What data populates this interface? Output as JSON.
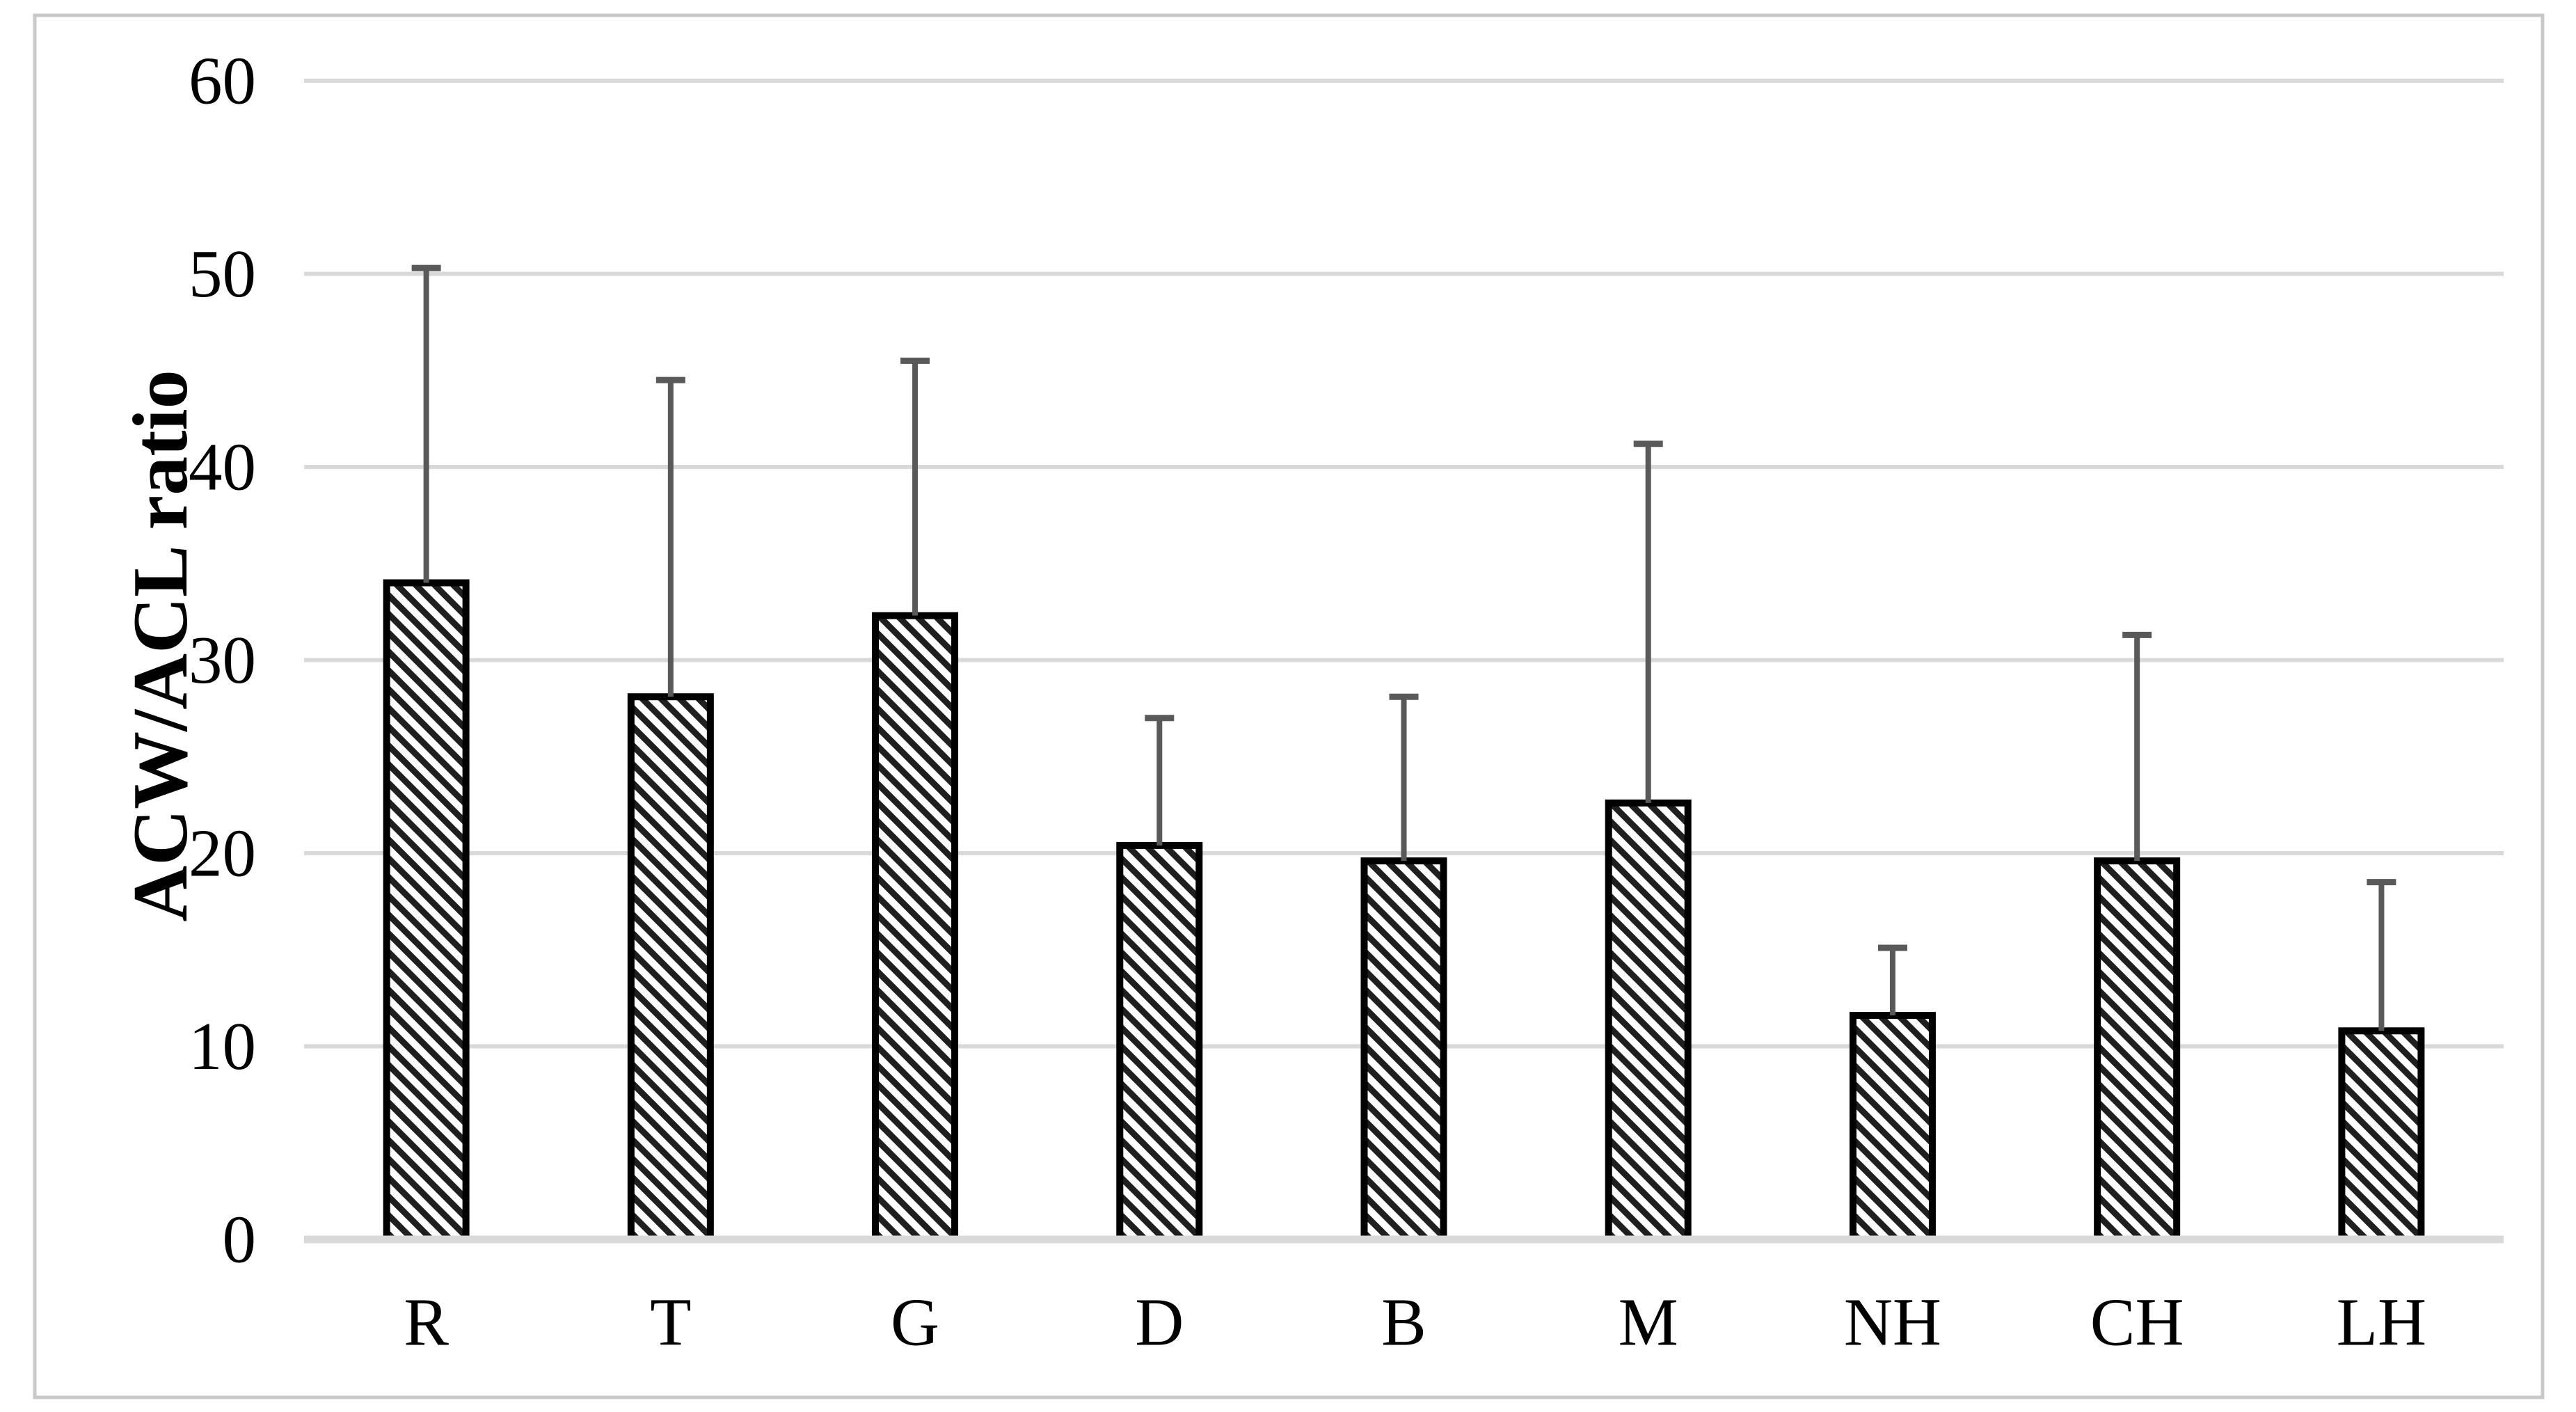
{
  "figure": {
    "background": "#ffffff",
    "border_color": "#c9c9c9"
  },
  "chart_data": {
    "type": "bar",
    "title": "",
    "ylabel": "ACW/ACL ratio",
    "xlabel": "",
    "categories": [
      "R",
      "T",
      "G",
      "D",
      "B",
      "M",
      "NH",
      "CH",
      "LH"
    ],
    "values": [
      34.0,
      28.1,
      32.3,
      20.4,
      19.6,
      22.6,
      11.6,
      19.6,
      10.8
    ],
    "error_plus": [
      16.3,
      16.4,
      13.2,
      6.6,
      8.5,
      18.6,
      3.5,
      11.7,
      7.7
    ],
    "ylim": [
      0,
      60
    ],
    "yticks": [
      0,
      10,
      20,
      30,
      40,
      50,
      60
    ],
    "grid": true,
    "legend": "none",
    "bar_fill_style": "diagonal-hatch-down",
    "colors": {
      "hatch": "#1f1f1f",
      "bar_fill": "#ffffff",
      "bar_border": "#000000",
      "error_bar": "#595959",
      "gridline": "#d9d9d9",
      "axis_line": "#d9d9d9",
      "text": "#000000"
    }
  }
}
